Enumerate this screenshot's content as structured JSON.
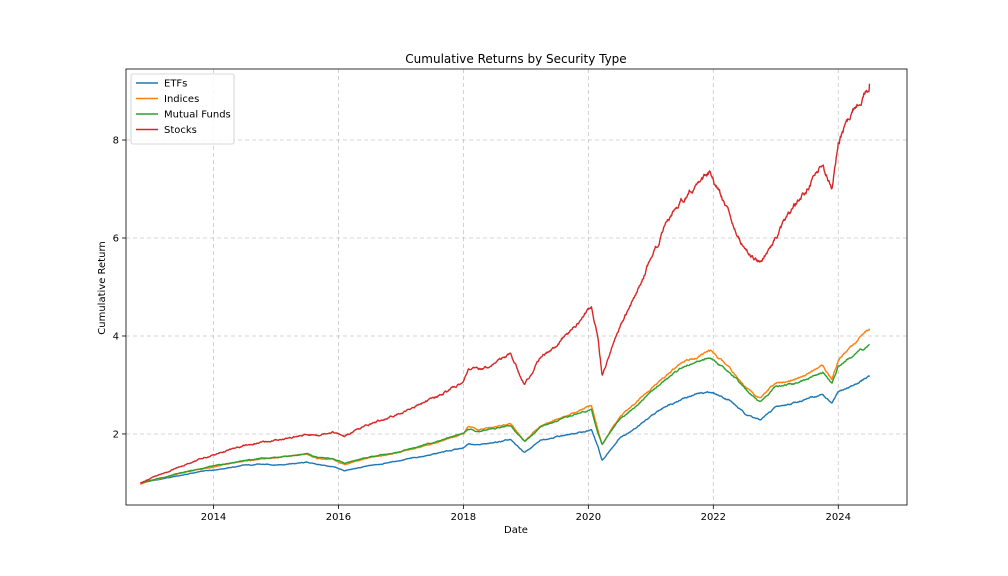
{
  "chart_data": {
    "type": "line",
    "title": "Cumulative Returns by Security Type",
    "xlabel": "Date",
    "ylabel": "Cumulative Return",
    "xlim": [
      2012.6,
      2025.1
    ],
    "ylim": [
      0.55,
      9.45
    ],
    "x_ticks": [
      2014,
      2016,
      2018,
      2020,
      2022,
      2024
    ],
    "y_ticks": [
      2,
      4,
      6,
      8
    ],
    "grid": true,
    "legend_position": "top-left",
    "series": [
      {
        "name": "ETFs",
        "color": "#1f77b4",
        "x": [
          2012.83,
          2013.0,
          2013.25,
          2013.5,
          2013.75,
          2014.0,
          2014.25,
          2014.5,
          2014.75,
          2015.0,
          2015.25,
          2015.5,
          2015.67,
          2015.9,
          2016.1,
          2016.5,
          2016.9,
          2017.25,
          2017.5,
          2017.75,
          2018.0,
          2018.08,
          2018.25,
          2018.5,
          2018.75,
          2018.98,
          2019.25,
          2019.5,
          2019.75,
          2020.05,
          2020.15,
          2020.22,
          2020.5,
          2020.75,
          2021.0,
          2021.25,
          2021.5,
          2021.75,
          2021.95,
          2022.25,
          2022.5,
          2022.75,
          2023.0,
          2023.25,
          2023.5,
          2023.75,
          2023.9,
          2024.0,
          2024.25,
          2024.5
        ],
        "values": [
          1.0,
          1.04,
          1.1,
          1.16,
          1.22,
          1.27,
          1.31,
          1.36,
          1.38,
          1.37,
          1.39,
          1.42,
          1.38,
          1.33,
          1.25,
          1.35,
          1.44,
          1.52,
          1.58,
          1.65,
          1.72,
          1.8,
          1.78,
          1.82,
          1.88,
          1.62,
          1.88,
          1.95,
          2.0,
          2.08,
          1.75,
          1.45,
          1.92,
          2.12,
          2.35,
          2.58,
          2.72,
          2.82,
          2.86,
          2.7,
          2.42,
          2.28,
          2.55,
          2.62,
          2.72,
          2.8,
          2.62,
          2.85,
          3.0,
          3.17
        ]
      },
      {
        "name": "Indices",
        "color": "#ff7f0e",
        "x": [
          2012.83,
          2013.0,
          2013.25,
          2013.5,
          2013.75,
          2014.0,
          2014.25,
          2014.5,
          2014.75,
          2015.0,
          2015.25,
          2015.5,
          2015.67,
          2015.9,
          2016.1,
          2016.5,
          2016.9,
          2017.25,
          2017.5,
          2017.75,
          2018.0,
          2018.08,
          2018.25,
          2018.5,
          2018.75,
          2018.98,
          2019.25,
          2019.5,
          2019.75,
          2020.05,
          2020.15,
          2020.22,
          2020.5,
          2020.75,
          2021.0,
          2021.25,
          2021.5,
          2021.75,
          2021.95,
          2022.25,
          2022.5,
          2022.75,
          2023.0,
          2023.25,
          2023.5,
          2023.75,
          2023.9,
          2024.0,
          2024.25,
          2024.5
        ],
        "values": [
          0.98,
          1.05,
          1.12,
          1.2,
          1.27,
          1.33,
          1.39,
          1.45,
          1.48,
          1.52,
          1.55,
          1.58,
          1.5,
          1.48,
          1.38,
          1.52,
          1.6,
          1.72,
          1.8,
          1.9,
          2.0,
          2.15,
          2.08,
          2.15,
          2.22,
          1.85,
          2.18,
          2.3,
          2.42,
          2.58,
          2.1,
          1.78,
          2.35,
          2.62,
          2.92,
          3.2,
          3.45,
          3.58,
          3.7,
          3.38,
          2.98,
          2.72,
          3.05,
          3.1,
          3.22,
          3.38,
          3.12,
          3.52,
          3.85,
          4.15
        ]
      },
      {
        "name": "Mutual Funds",
        "color": "#2ca02c",
        "x": [
          2012.83,
          2013.0,
          2013.25,
          2013.5,
          2013.75,
          2014.0,
          2014.25,
          2014.5,
          2014.75,
          2015.0,
          2015.25,
          2015.5,
          2015.67,
          2015.9,
          2016.1,
          2016.5,
          2016.9,
          2017.25,
          2017.5,
          2017.75,
          2018.0,
          2018.08,
          2018.25,
          2018.5,
          2018.75,
          2018.98,
          2019.25,
          2019.5,
          2019.75,
          2020.05,
          2020.15,
          2020.22,
          2020.5,
          2020.75,
          2021.0,
          2021.25,
          2021.5,
          2021.75,
          2021.95,
          2022.25,
          2022.5,
          2022.75,
          2023.0,
          2023.25,
          2023.5,
          2023.75,
          2023.9,
          2024.0,
          2024.25,
          2024.5
        ],
        "values": [
          0.99,
          1.06,
          1.13,
          1.21,
          1.28,
          1.34,
          1.4,
          1.46,
          1.5,
          1.53,
          1.56,
          1.59,
          1.52,
          1.5,
          1.4,
          1.53,
          1.62,
          1.73,
          1.82,
          1.92,
          2.02,
          2.1,
          2.05,
          2.12,
          2.18,
          1.85,
          2.15,
          2.26,
          2.38,
          2.5,
          2.05,
          1.8,
          2.3,
          2.56,
          2.85,
          3.12,
          3.36,
          3.48,
          3.55,
          3.28,
          2.92,
          2.66,
          2.98,
          3.02,
          3.12,
          3.26,
          3.02,
          3.38,
          3.62,
          3.83
        ]
      },
      {
        "name": "Stocks",
        "color": "#d62728",
        "x": [
          2012.83,
          2013.0,
          2013.25,
          2013.5,
          2013.75,
          2014.0,
          2014.25,
          2014.5,
          2014.75,
          2015.0,
          2015.25,
          2015.5,
          2015.67,
          2015.9,
          2016.1,
          2016.5,
          2016.9,
          2017.25,
          2017.5,
          2017.75,
          2018.0,
          2018.08,
          2018.25,
          2018.5,
          2018.75,
          2018.98,
          2019.25,
          2019.5,
          2019.75,
          2020.05,
          2020.15,
          2020.22,
          2020.5,
          2020.75,
          2021.0,
          2021.25,
          2021.5,
          2021.75,
          2021.95,
          2022.25,
          2022.5,
          2022.75,
          2023.0,
          2023.25,
          2023.5,
          2023.75,
          2023.9,
          2024.0,
          2024.25,
          2024.5
        ],
        "values": [
          1.0,
          1.1,
          1.22,
          1.35,
          1.47,
          1.57,
          1.67,
          1.76,
          1.82,
          1.87,
          1.93,
          1.98,
          1.98,
          2.05,
          1.95,
          2.2,
          2.38,
          2.58,
          2.72,
          2.88,
          3.05,
          3.35,
          3.3,
          3.45,
          3.65,
          3.0,
          3.6,
          3.8,
          4.15,
          4.6,
          4.0,
          3.2,
          4.2,
          4.8,
          5.6,
          6.25,
          6.8,
          7.1,
          7.35,
          6.5,
          5.8,
          5.5,
          6.0,
          6.55,
          7.0,
          7.5,
          7.0,
          8.0,
          8.65,
          9.15
        ]
      }
    ]
  }
}
